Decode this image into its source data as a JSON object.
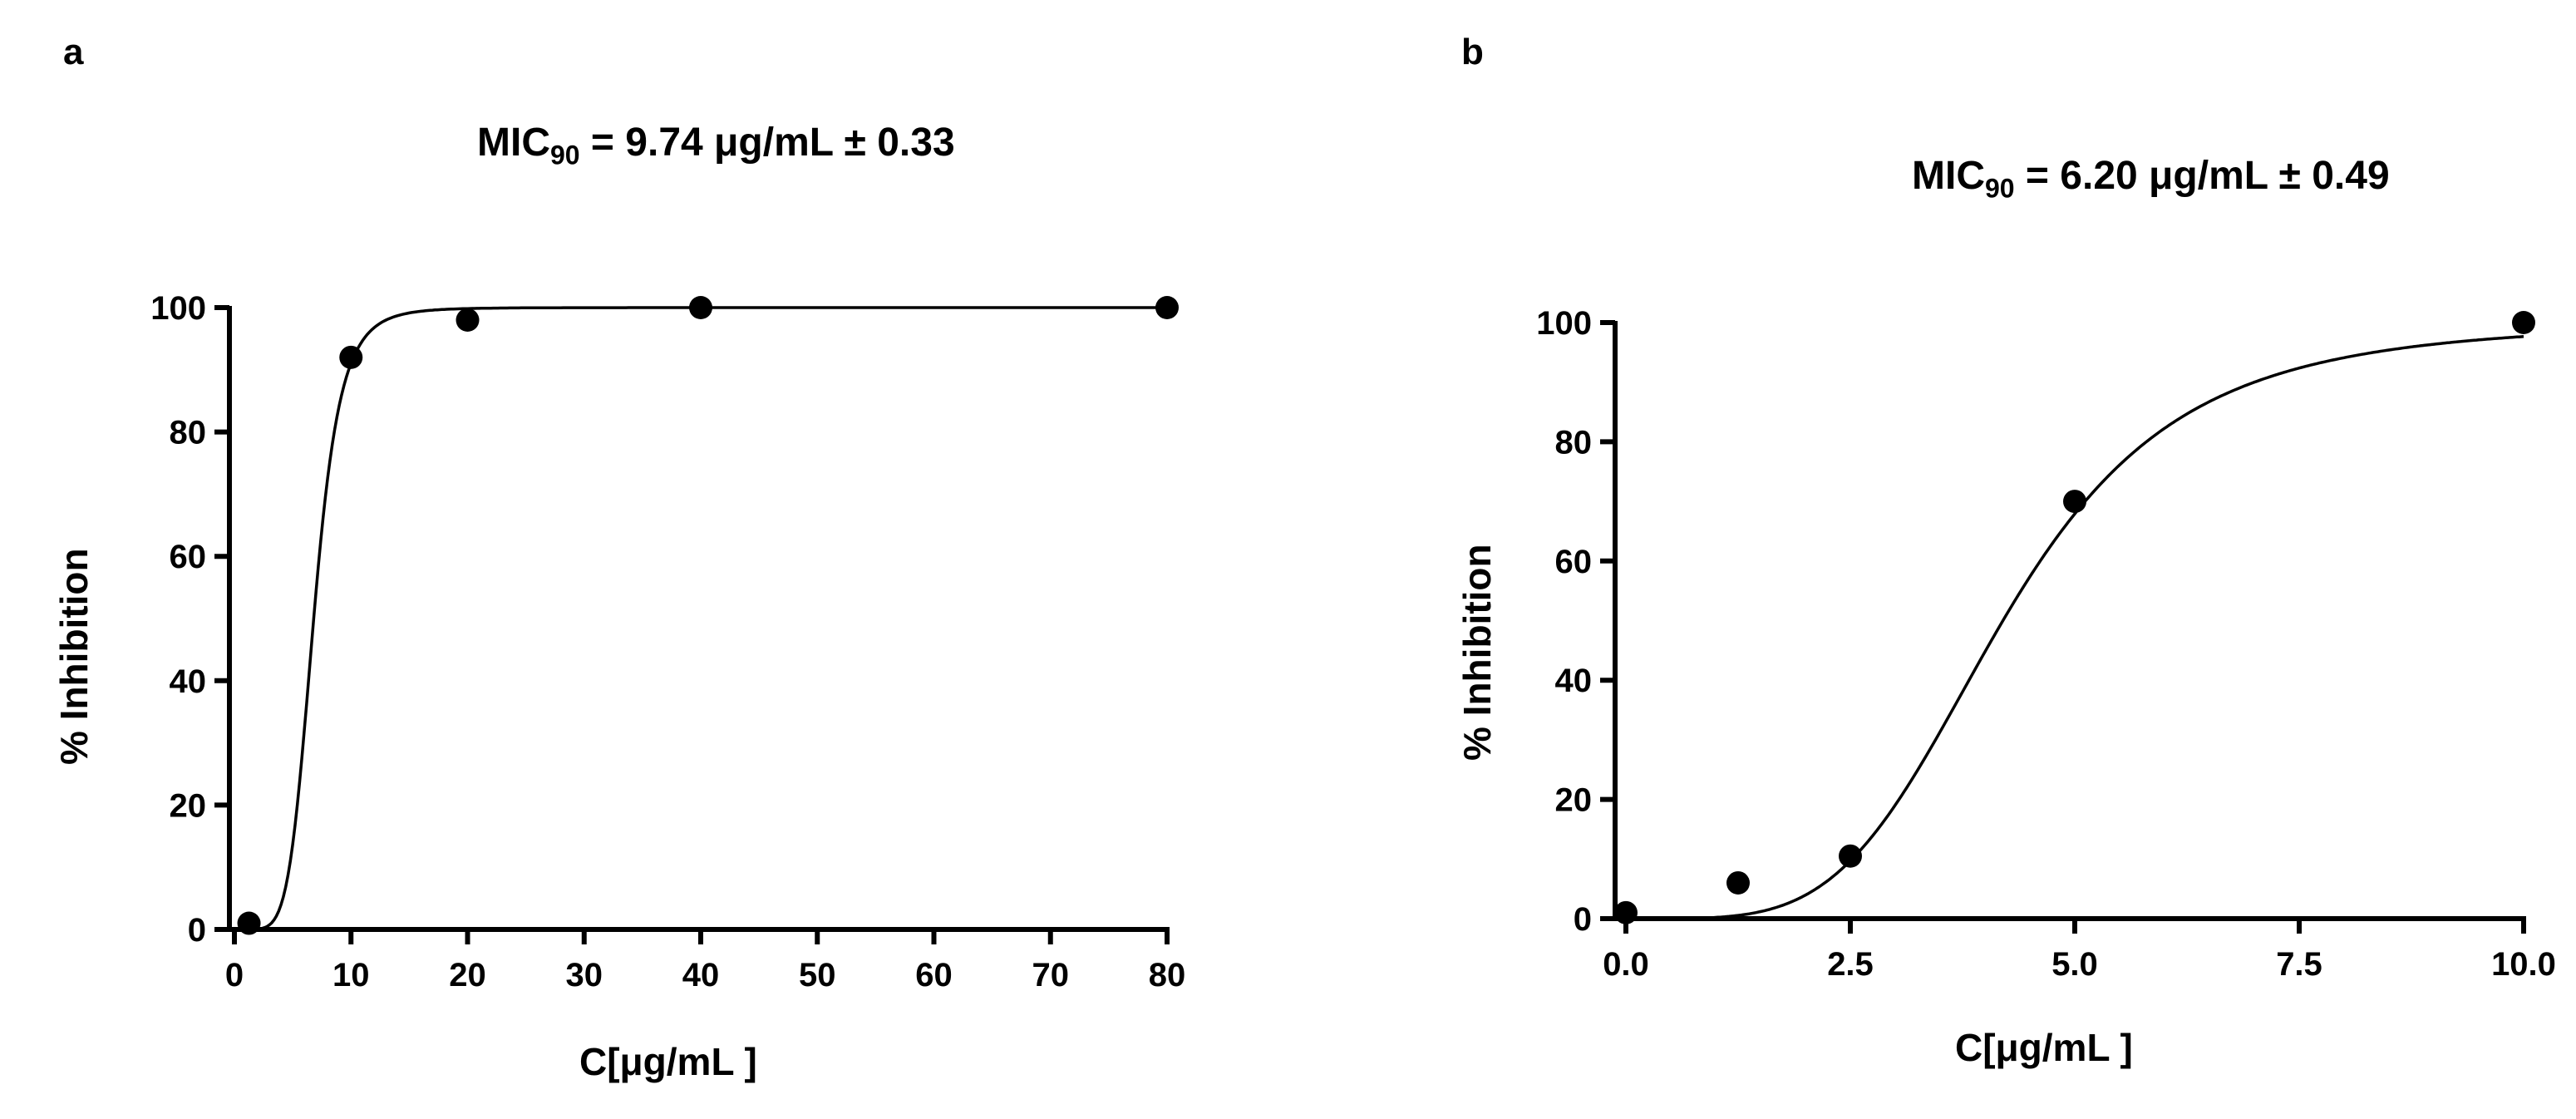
{
  "chart_data": [
    {
      "panel": "a",
      "type": "scatter",
      "title_prefix": "MIC",
      "title_sub": "90",
      "title_suffix": " = 9.74 μg/mL ± 0.33",
      "xlabel": "C[μg/mL ]",
      "ylabel": "% Inhibition",
      "xlim": [
        0,
        80
      ],
      "ylim": [
        0,
        100
      ],
      "x_ticks": [
        0,
        10,
        20,
        30,
        40,
        50,
        60,
        70,
        80
      ],
      "y_ticks": [
        0,
        20,
        40,
        60,
        80,
        100
      ],
      "points": [
        {
          "x": 1.25,
          "y": 1
        },
        {
          "x": 10,
          "y": 92
        },
        {
          "x": 20,
          "y": 98
        },
        {
          "x": 40,
          "y": 100
        },
        {
          "x": 80,
          "y": 100
        }
      ],
      "fit": {
        "model": "hill",
        "bottom": 0,
        "top": 100,
        "ec50": 6.8,
        "hill": 6
      }
    },
    {
      "panel": "b",
      "type": "scatter",
      "title_prefix": "MIC",
      "title_sub": "90",
      "title_suffix": " = 6.20 μg/mL ± 0.49",
      "xlabel": "C[μg/mL ]",
      "ylabel": "% Inhibition",
      "xlim": [
        0,
        10
      ],
      "ylim": [
        0,
        100
      ],
      "x_ticks": [
        "0.0",
        "2.5",
        "5.0",
        "7.5",
        "10.0"
      ],
      "y_ticks": [
        0,
        20,
        40,
        60,
        80,
        100
      ],
      "points": [
        {
          "x": 0,
          "y": 1
        },
        {
          "x": 1.25,
          "y": 6
        },
        {
          "x": 2.5,
          "y": 10.5
        },
        {
          "x": 5,
          "y": 70
        },
        {
          "x": 10,
          "y": 100
        }
      ],
      "fit": {
        "model": "hill",
        "bottom": 0,
        "top": 100,
        "ec50": 4.2,
        "hill": 4.3
      }
    }
  ]
}
